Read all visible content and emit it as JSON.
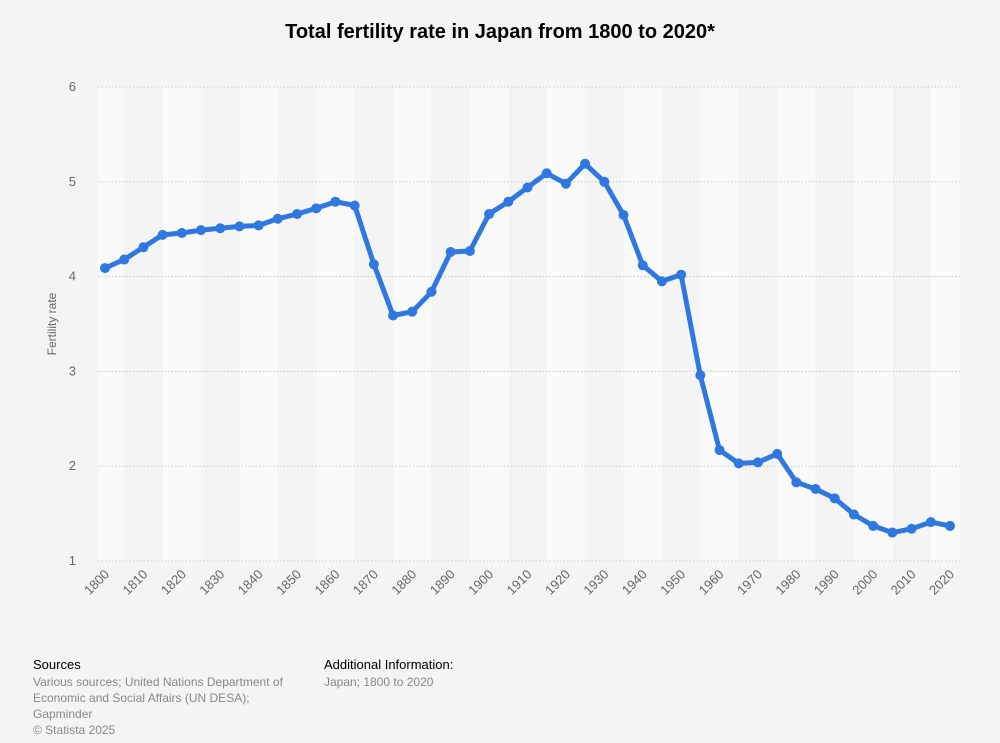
{
  "footer": {
    "sources_heading": "Sources",
    "sources_text": "Various sources; United Nations Department of Economic and Social Affairs (UN DESA); Gapminder",
    "copyright": "© Statista 2025",
    "additional_heading": "Additional Information:",
    "additional_text": "Japan; 1800 to 2020"
  },
  "colors": {
    "line": "#2e78e0",
    "band_light": "#fafafa",
    "band_dark": "#f4f4f4",
    "grid": "#c8c8c8",
    "background": "#f4f4f4"
  },
  "chart_data": {
    "type": "line",
    "title": "Total fertility rate in Japan from 1800 to 2020*",
    "xlabel": "",
    "ylabel": "Fertility rate",
    "ylim": [
      1,
      6
    ],
    "yticks": [
      1,
      2,
      3,
      4,
      5,
      6
    ],
    "xticks": [
      1800,
      1810,
      1820,
      1830,
      1840,
      1850,
      1860,
      1870,
      1880,
      1890,
      1900,
      1910,
      1920,
      1930,
      1940,
      1950,
      1960,
      1970,
      1980,
      1990,
      2000,
      2010,
      2020
    ],
    "grid": true,
    "legend": "none",
    "series": [
      {
        "x": [
          1800,
          1805,
          1810,
          1815,
          1820,
          1825,
          1830,
          1835,
          1840,
          1845,
          1850,
          1855,
          1860,
          1865,
          1870,
          1875,
          1880,
          1885,
          1890,
          1895,
          1900,
          1905,
          1910,
          1915,
          1920,
          1925,
          1930,
          1935,
          1940,
          1945,
          1950,
          1955,
          1960,
          1965,
          1970,
          1975,
          1980,
          1985,
          1990,
          1995,
          2000,
          2005,
          2010,
          2015,
          2020
        ],
        "values": [
          4.09,
          4.18,
          4.31,
          4.44,
          4.46,
          4.49,
          4.51,
          4.53,
          4.54,
          4.61,
          4.66,
          4.72,
          4.79,
          4.75,
          4.13,
          3.59,
          3.63,
          3.84,
          4.26,
          4.27,
          4.66,
          4.79,
          4.94,
          5.09,
          4.98,
          5.19,
          5.0,
          4.65,
          4.12,
          3.95,
          4.02,
          2.96,
          2.17,
          2.03,
          2.04,
          2.13,
          1.83,
          1.76,
          1.66,
          1.49,
          1.37,
          1.3,
          1.34,
          1.41,
          1.37
        ]
      }
    ]
  }
}
